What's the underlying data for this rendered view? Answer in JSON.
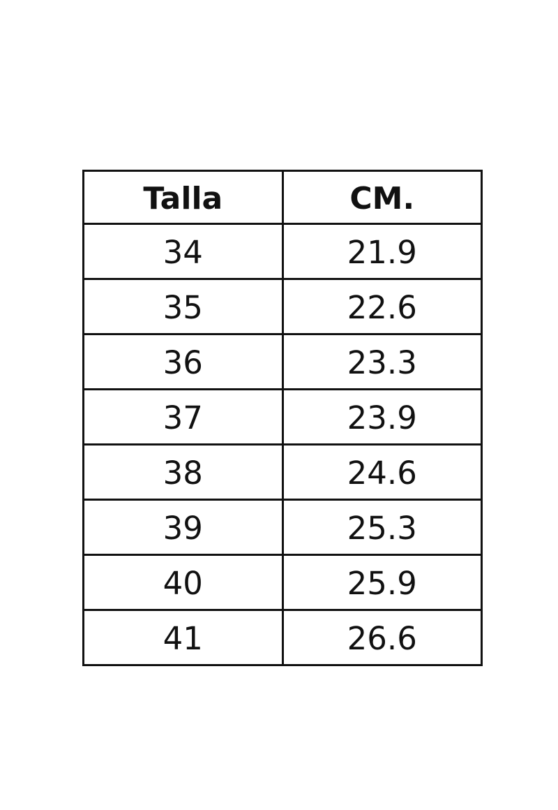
{
  "table": {
    "headers": [
      "Talla",
      "CM."
    ],
    "rows": [
      [
        "34",
        "21.9"
      ],
      [
        "35",
        "22.6"
      ],
      [
        "36",
        "23.3"
      ],
      [
        "37",
        "23.9"
      ],
      [
        "38",
        "24.6"
      ],
      [
        "39",
        "25.3"
      ],
      [
        "40",
        "25.9"
      ],
      [
        "41",
        "26.6"
      ]
    ]
  }
}
